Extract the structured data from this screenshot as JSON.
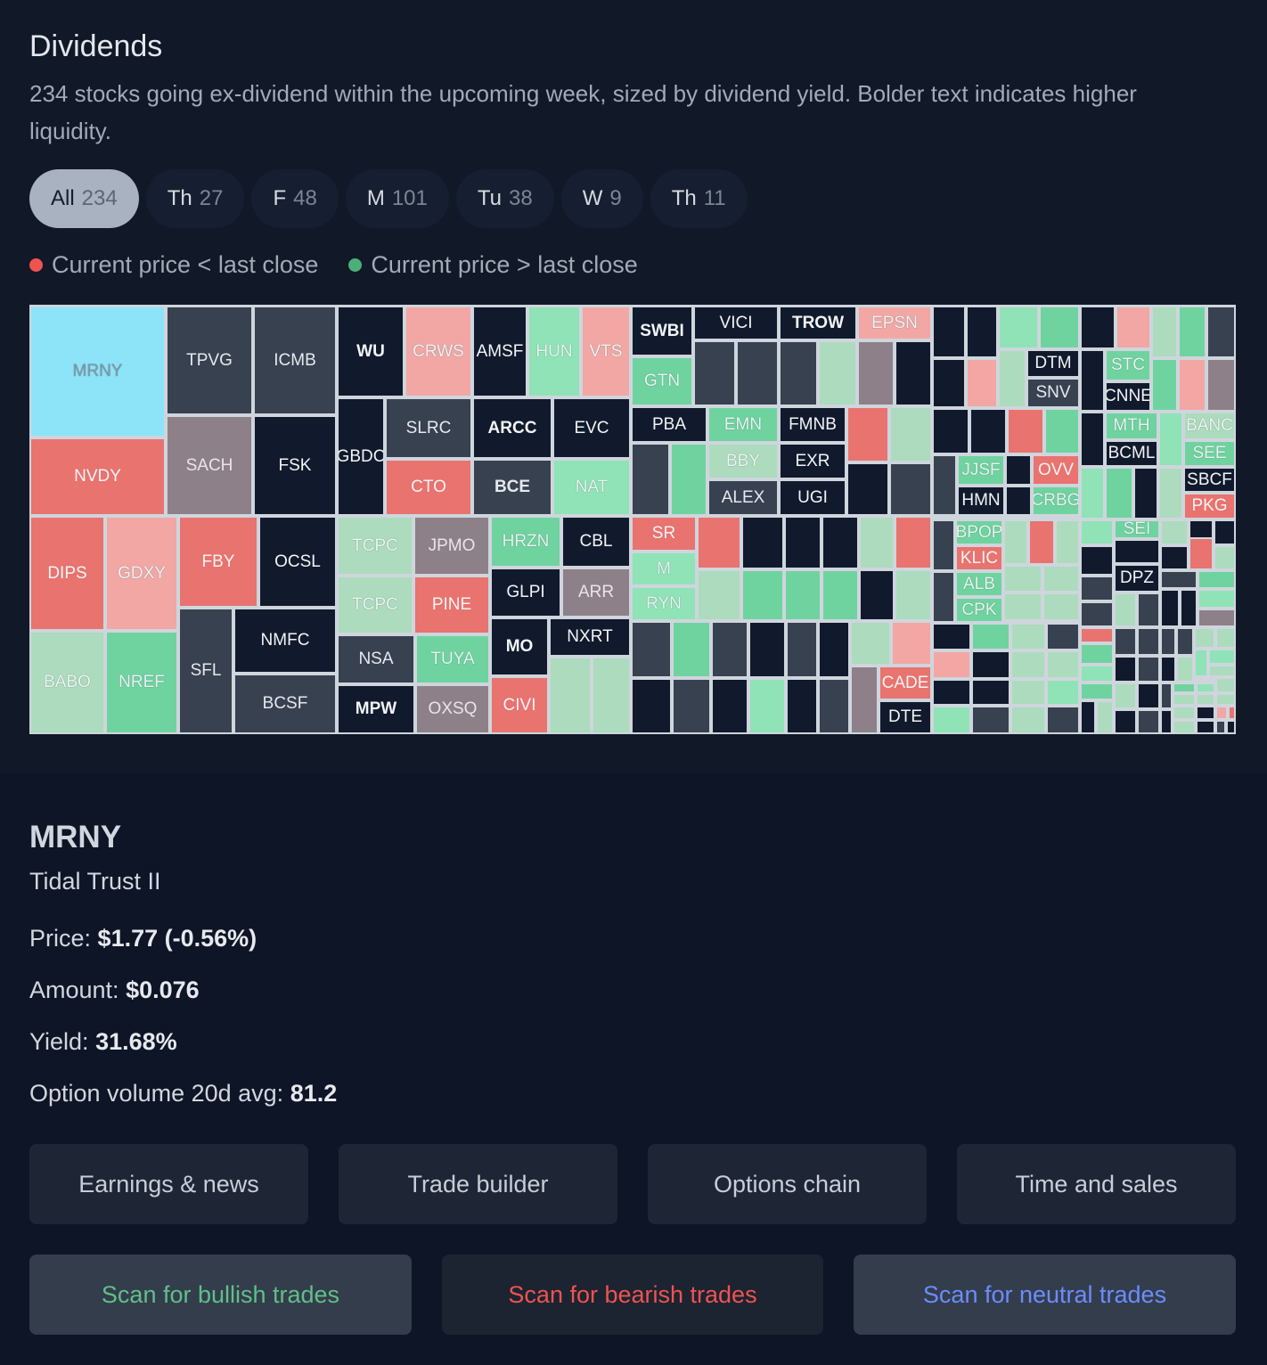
{
  "header": {
    "title": "Dividends",
    "subtitle": "234 stocks going ex-dividend within the upcoming week, sized by dividend yield. Bolder text indicates higher liquidity."
  },
  "tabs": [
    {
      "label": "All",
      "count": "234"
    },
    {
      "label": "Th",
      "count": "27"
    },
    {
      "label": "F",
      "count": "48"
    },
    {
      "label": "M",
      "count": "101"
    },
    {
      "label": "Tu",
      "count": "38"
    },
    {
      "label": "W",
      "count": "9"
    },
    {
      "label": "Th",
      "count": "11"
    }
  ],
  "legend": {
    "down_label": "Current price < last close",
    "up_label": "Current price > last close",
    "down_color": "#ef5350",
    "up_color": "#4caf7a"
  },
  "colors": {
    "selected": "#8de4f8",
    "red": "#e8736f",
    "light_red": "#f2a7a4",
    "green": "#6fd3a0",
    "light_green": "#8fe3b7",
    "pale_green": "#acdcbd",
    "mauve": "#8e8088",
    "slate": "#384150",
    "navy": "#111a2c"
  },
  "treemap_labels": [
    "MRNY",
    "TPVG",
    "ICMB",
    "WU",
    "CRWS",
    "AMSF",
    "HUN",
    "VTS",
    "SWBI",
    "VICI",
    "TROW",
    "EPSN",
    "GTN",
    "DTM",
    "SNV",
    "STC",
    "CNNE",
    "NVDY",
    "SACH",
    "FSK",
    "GBDC",
    "SLRC",
    "ARCC",
    "EVC",
    "BCE",
    "CTO",
    "NAT",
    "PBA",
    "EMN",
    "FMNB",
    "BBY",
    "EXR",
    "ALEX",
    "UGI",
    "JJSF",
    "OVV",
    "HMN",
    "CRBG",
    "MTH",
    "BCML",
    "BANC",
    "SEE",
    "SBCF",
    "PKG",
    "DIPS",
    "GDXY",
    "FBY",
    "OCSL",
    "TCPC",
    "JPMO",
    "HRZN",
    "CBL",
    "SR",
    "M",
    "RYN",
    "GLPI",
    "ARR",
    "PINE",
    "BPOP",
    "KLIC",
    "ALB",
    "CPK",
    "SEI",
    "DPZ",
    "NMFC",
    "NSA",
    "TUYA",
    "MO",
    "NXRT",
    "BABO",
    "NREF",
    "SFL",
    "BCSF",
    "MPW",
    "OXSQ",
    "CIVI",
    "CADE",
    "DTE"
  ],
  "detail": {
    "symbol": "MRNY",
    "name": "Tidal Trust II",
    "price_label": "Price:",
    "price_value": "$1.77 (-0.56%)",
    "amount_label": "Amount:",
    "amount_value": "$0.076",
    "yield_label": "Yield:",
    "yield_value": "31.68%",
    "optvol_label": "Option volume 20d avg:",
    "optvol_value": "81.2"
  },
  "actions": {
    "earnings": "Earnings & news",
    "trade_builder": "Trade builder",
    "options_chain": "Options chain",
    "time_sales": "Time and sales",
    "scan_bullish": "Scan for bullish trades",
    "scan_bearish": "Scan for bearish trades",
    "scan_neutral": "Scan for neutral trades",
    "bullish_color": "#5fbf8a",
    "bearish_color": "#ef5350",
    "neutral_color": "#6b8cff"
  }
}
